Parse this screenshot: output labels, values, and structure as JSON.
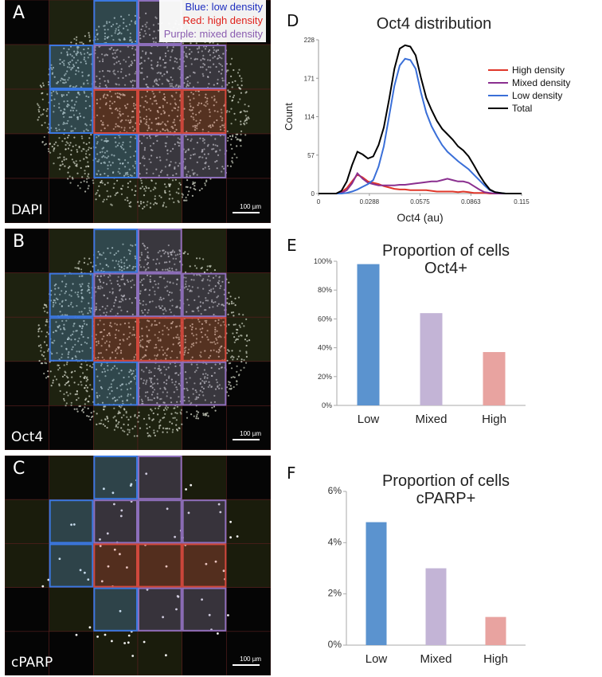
{
  "panels": {
    "A": {
      "letter": "A",
      "stain": "DAPI",
      "scale": "100 µm"
    },
    "B": {
      "letter": "B",
      "stain": "Oct4",
      "scale": "100 µm"
    },
    "C": {
      "letter": "C",
      "stain": "cPARP",
      "scale": "100 µm"
    }
  },
  "legend": {
    "blue": "Blue: low density",
    "red": "Red: high density",
    "purple": "Purple: mixed density"
  },
  "colors": {
    "blue": "#3a6fd8",
    "red": "#e0372a",
    "purple": "#8a5db0",
    "bar_low": "#5b93cf",
    "bar_mixed": "#c3b4d6",
    "bar_high": "#e8a3a0"
  },
  "chart_data": [
    {
      "id": "D",
      "letter": "D",
      "type": "line",
      "title": "Oct4 distribution",
      "xlabel": "Oct4 (au)",
      "ylabel": "Count",
      "xlim": [
        0,
        0.115
      ],
      "ylim": [
        0,
        228
      ],
      "xticks": [
        "0",
        "0.0288",
        "0.0575",
        "0.0863",
        "0.115"
      ],
      "yticks": [
        "0",
        "57",
        "114",
        "171",
        "228"
      ],
      "legend_position": "right",
      "x": [
        0,
        0.01,
        0.013,
        0.016,
        0.019,
        0.022,
        0.025,
        0.028,
        0.031,
        0.034,
        0.037,
        0.04,
        0.043,
        0.046,
        0.049,
        0.052,
        0.055,
        0.058,
        0.061,
        0.064,
        0.067,
        0.07,
        0.073,
        0.076,
        0.079,
        0.082,
        0.085,
        0.088,
        0.091,
        0.094,
        0.097,
        0.1,
        0.103,
        0.106,
        0.11,
        0.115
      ],
      "series": [
        {
          "name": "High density",
          "color": "#e0372a",
          "values": [
            0,
            0,
            2,
            8,
            18,
            28,
            24,
            18,
            16,
            14,
            11,
            9,
            7,
            6,
            6,
            5,
            5,
            5,
            5,
            4,
            3,
            3,
            3,
            3,
            2,
            3,
            2,
            1,
            1,
            1,
            0,
            0,
            0,
            0,
            0,
            0
          ]
        },
        {
          "name": "Mixed density",
          "color": "#8a2f8f",
          "values": [
            0,
            0,
            1,
            5,
            15,
            30,
            22,
            16,
            14,
            12,
            12,
            12,
            12,
            13,
            13,
            14,
            15,
            16,
            17,
            18,
            18,
            20,
            22,
            20,
            18,
            18,
            16,
            11,
            6,
            2,
            1,
            0,
            0,
            0,
            0,
            0
          ]
        },
        {
          "name": "Low density",
          "color": "#3a6fd8",
          "values": [
            0,
            0,
            0,
            1,
            3,
            6,
            10,
            14,
            20,
            40,
            70,
            115,
            160,
            190,
            200,
            198,
            185,
            150,
            120,
            100,
            85,
            72,
            62,
            55,
            48,
            42,
            36,
            28,
            20,
            12,
            5,
            2,
            1,
            0,
            0,
            0
          ]
        },
        {
          "name": "Total",
          "color": "#000000",
          "values": [
            0,
            0,
            4,
            18,
            42,
            62,
            58,
            52,
            55,
            72,
            98,
            140,
            185,
            215,
            220,
            218,
            205,
            172,
            142,
            124,
            108,
            96,
            88,
            80,
            70,
            64,
            55,
            42,
            28,
            16,
            6,
            2,
            1,
            0,
            0,
            0
          ]
        }
      ]
    },
    {
      "id": "E",
      "letter": "E",
      "type": "bar",
      "title": "Proportion of cells",
      "subtitle": "Oct4+",
      "categories": [
        "Low",
        "Mixed",
        "High"
      ],
      "values": [
        98,
        64,
        37
      ],
      "colors": [
        "#5b93cf",
        "#c3b4d6",
        "#e8a3a0"
      ],
      "ylim": [
        0,
        100
      ],
      "yticks": [
        "0%",
        "20%",
        "40%",
        "60%",
        "80%",
        "100%"
      ]
    },
    {
      "id": "F",
      "letter": "F",
      "type": "bar",
      "title": "Proportion of cells",
      "subtitle": "cPARP+",
      "categories": [
        "Low",
        "Mixed",
        "High"
      ],
      "values": [
        4.8,
        3.0,
        1.1
      ],
      "colors": [
        "#5b93cf",
        "#c3b4d6",
        "#e8a3a0"
      ],
      "ylim": [
        0,
        6
      ],
      "yticks": [
        "0%",
        "2%",
        "4%",
        "6%"
      ]
    }
  ]
}
